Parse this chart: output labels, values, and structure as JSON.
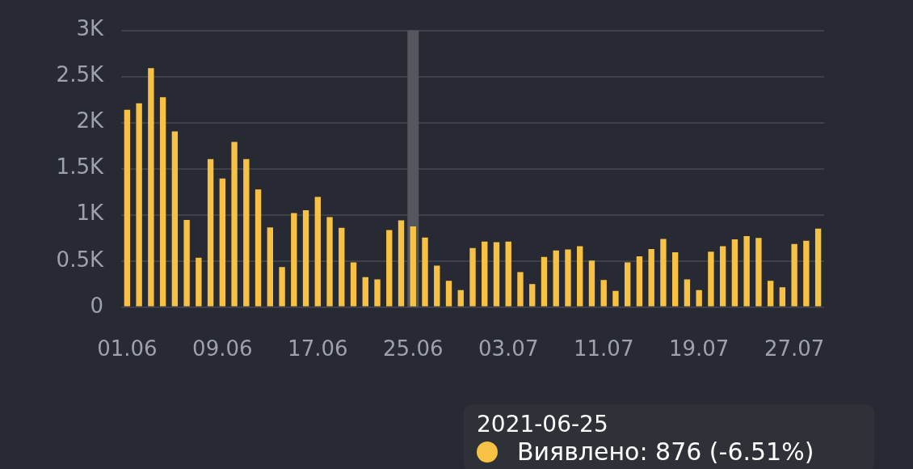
{
  "chart_data": {
    "type": "bar",
    "categories": [
      "01.06",
      null,
      null,
      null,
      null,
      null,
      null,
      null,
      "09.06",
      null,
      null,
      null,
      null,
      null,
      null,
      null,
      "17.06",
      null,
      null,
      null,
      null,
      null,
      null,
      null,
      "25.06",
      null,
      null,
      null,
      null,
      null,
      null,
      null,
      "03.07",
      null,
      null,
      null,
      null,
      null,
      null,
      null,
      "11.07",
      null,
      null,
      null,
      null,
      null,
      null,
      null,
      "19.07",
      null,
      null,
      null,
      null,
      null,
      null,
      null,
      "27.07",
      null,
      null
    ],
    "series": [
      {
        "color": "#f7c244",
        "values": [
          2140,
          2210,
          2590,
          2275,
          1905,
          945,
          535,
          1605,
          1395,
          1790,
          1605,
          1275,
          865,
          435,
          1020,
          1050,
          1195,
          975,
          860,
          485,
          325,
          300,
          835,
          940,
          876,
          755,
          450,
          285,
          185,
          640,
          710,
          705,
          710,
          380,
          250,
          545,
          615,
          625,
          660,
          505,
          295,
          175,
          485,
          550,
          630,
          740,
          595,
          300,
          185,
          600,
          660,
          735,
          770,
          750,
          285,
          215,
          685,
          720,
          850
        ]
      }
    ],
    "ylim": [
      0,
      3000
    ],
    "yticks": [
      0,
      {
        "value": 500,
        "label": "0.5K"
      },
      {
        "value": 1000,
        "label": "1K"
      },
      {
        "value": 1500,
        "label": "1.5K"
      },
      {
        "value": 2000,
        "label": "2K"
      },
      {
        "value": 2500,
        "label": "2.5K"
      },
      {
        "value": 3000,
        "label": "3K"
      }
    ],
    "grid": "y",
    "legend": false,
    "ref_lines": [
      {
        "axis": "x",
        "value": "25.06",
        "color": "#55575e"
      }
    ],
    "annotations": [
      "2021-06-25",
      "Виявлено: 876 (-6.51%)"
    ]
  }
}
